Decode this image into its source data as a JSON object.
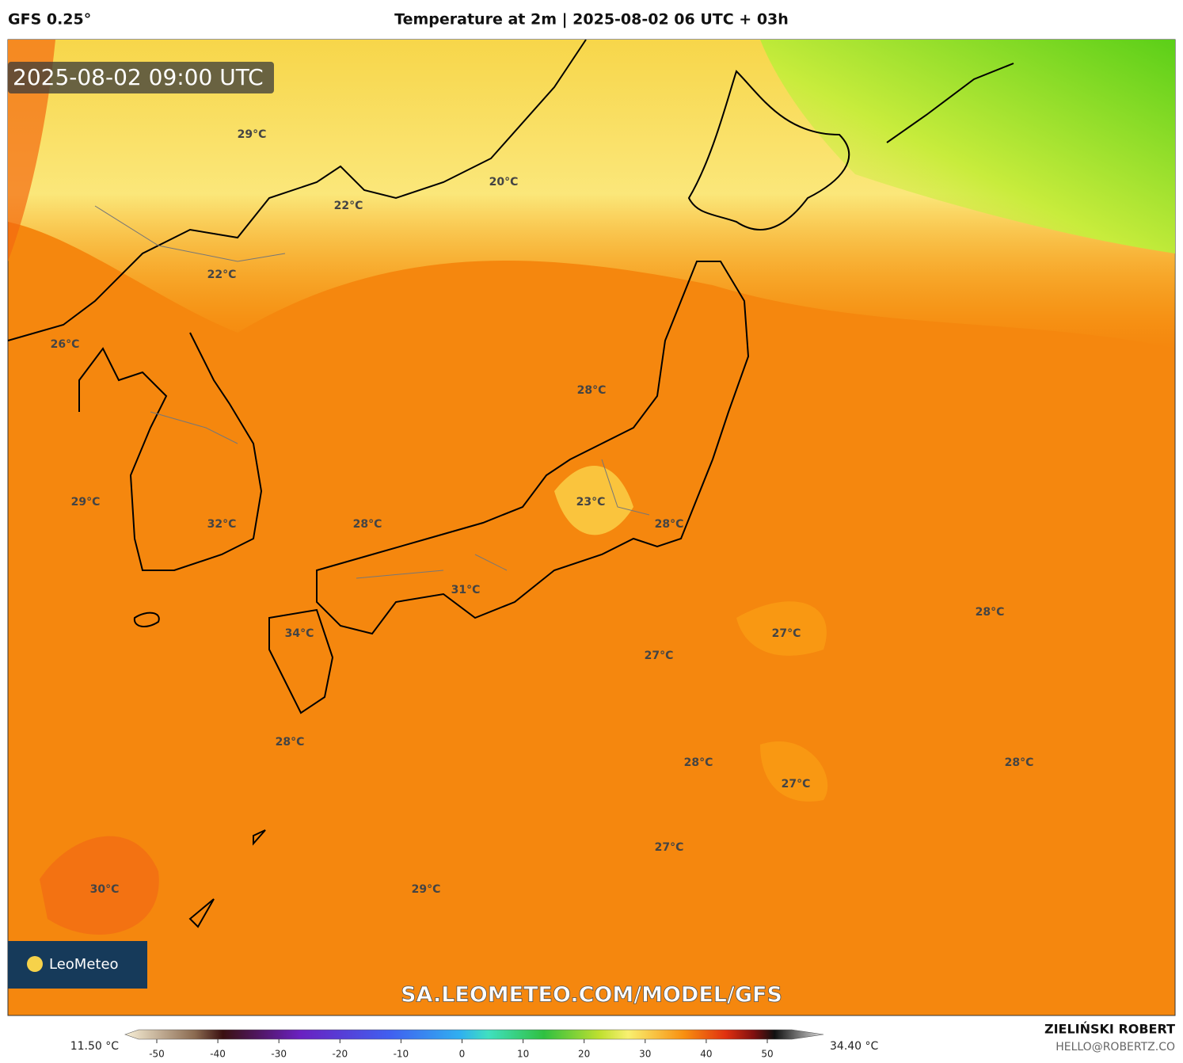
{
  "header": {
    "model": "GFS 0.25°",
    "title": "Temperature at 2m | 2025-08-02 06 UTC + 03h"
  },
  "map": {
    "timestamp": "2025-08-02 09:00 UTC",
    "watermark": "SA.LEOMETEO.COM/MODEL/GFS",
    "logo": "LeoMeteo",
    "labels": [
      "29°C",
      "20°C",
      "22°C",
      "22°C",
      "26°C",
      "28°C",
      "29°C",
      "32°C",
      "28°C",
      "23°C",
      "28°C",
      "31°C",
      "34°C",
      "28°C",
      "27°C",
      "27°C",
      "28°C",
      "28°C",
      "28°C",
      "27°C",
      "27°C",
      "30°C",
      "29°C"
    ]
  },
  "colorbar": {
    "min_label": "11.50 °C",
    "max_label": "34.40 °C",
    "ticks": [
      -50,
      -40,
      -30,
      -20,
      -10,
      0,
      10,
      20,
      30,
      40,
      50
    ]
  },
  "credits": {
    "author": "ZIELIŃSKI ROBERT",
    "email": "HELLO@ROBERTZ.CO"
  }
}
